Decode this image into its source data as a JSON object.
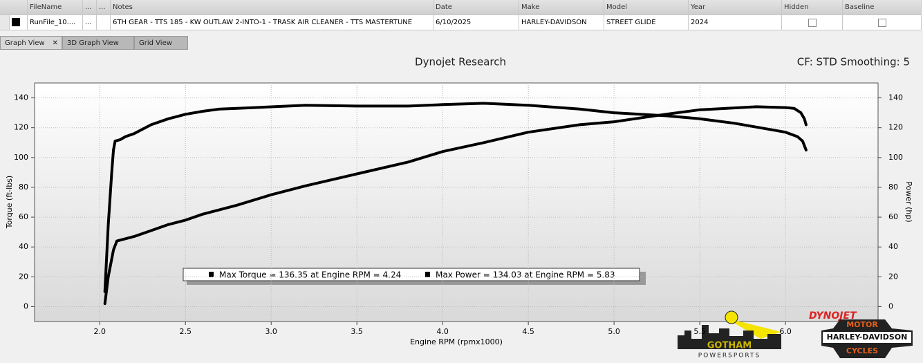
{
  "table": {
    "headers": [
      "FileName",
      "...",
      "...",
      "Notes",
      "Date",
      "Make",
      "Model",
      "Year",
      "Hidden",
      "Baseline"
    ],
    "row": [
      "RunFile_10....",
      "...",
      null,
      "6TH GEAR - TTS 185 - KW OUTLAW 2-INTO-1 - TRASK AIR CLEANER - TTS MASTERTUNE",
      "6/10/2025",
      "HARLEY-DAVIDSON",
      "STREET GLIDE",
      "2024",
      false,
      false
    ]
  },
  "tabs": [
    "Graph View",
    "3D Graph View",
    "Grid View"
  ],
  "chart_data": {
    "type": "line",
    "title": "Dynojet Research",
    "info": "CF: STD Smoothing: 5",
    "xlabel": "Engine RPM (rpmx1000)",
    "ylabel": "Torque (ft-lbs)",
    "y2label": "Power (hp)",
    "xlim": [
      1.62,
      6.54
    ],
    "ylim": [
      -10,
      150
    ],
    "y2lim": [
      -10,
      150
    ],
    "xticks": [
      {
        "value": 2,
        "label": "2.0"
      },
      {
        "value": 2.5,
        "label": "2.5"
      },
      {
        "value": 3,
        "label": "3.0"
      },
      {
        "value": 3.5,
        "label": "3.5"
      },
      {
        "value": 4,
        "label": "4.0"
      },
      {
        "value": 4.5,
        "label": "4.5"
      },
      {
        "value": 5,
        "label": "5.0"
      },
      {
        "value": 5.5,
        "label": "5.5"
      },
      {
        "value": 6,
        "label": "6.0"
      }
    ],
    "yticks": [
      0,
      20,
      40,
      60,
      80,
      100,
      120,
      140
    ],
    "y2ticks": [
      0,
      20,
      40,
      60,
      80,
      100,
      120,
      140
    ],
    "grid": true,
    "series": [
      {
        "color": "#000000",
        "x": [
          2.03,
          2.05,
          2.07,
          2.08,
          2.09,
          2.12,
          2.15,
          2.2,
          2.3,
          2.4,
          2.5,
          2.6,
          2.7,
          2.8,
          3.0,
          3.2,
          3.5,
          3.8,
          4.0,
          4.24,
          4.5,
          4.8,
          5.0,
          5.3,
          5.5,
          5.7,
          5.9,
          6.0,
          6.07,
          6.1,
          6.12
        ],
        "values": [
          10,
          55,
          90,
          105,
          111,
          112,
          114,
          116,
          122,
          126,
          129,
          131,
          132.5,
          133,
          134,
          135,
          134.5,
          134.5,
          135.5,
          136.35,
          135,
          132.5,
          130,
          128,
          126,
          123,
          119,
          117,
          114,
          111,
          105
        ]
      },
      {
        "color": "#000000",
        "axis": "y2",
        "x": [
          2.03,
          2.05,
          2.08,
          2.1,
          2.2,
          2.3,
          2.4,
          2.5,
          2.6,
          2.8,
          3.0,
          3.2,
          3.5,
          3.8,
          4.0,
          4.24,
          4.5,
          4.8,
          5.0,
          5.3,
          5.5,
          5.83,
          6.0,
          6.05,
          6.09,
          6.11,
          6.12
        ],
        "values": [
          2,
          20,
          38,
          44,
          47,
          51,
          55,
          58,
          62,
          68,
          75,
          81,
          89,
          97,
          104,
          110,
          117,
          122,
          124,
          129,
          132,
          134.03,
          133.5,
          133,
          130,
          126,
          122
        ]
      }
    ],
    "annotations": [
      "Max Torque = 136.35 at Engine RPM = 4.24",
      "Max Power = 134.03 at Engine RPM = 5.83"
    ]
  },
  "logos": {
    "dealer": "GOTHAM",
    "dealer_sub": "POWERSPORTS",
    "dyno": "DYNOJET",
    "hd_top": "MOTOR",
    "hd_mid": "HARLEY-DAVIDSON",
    "hd_bot": "CYCLES"
  }
}
